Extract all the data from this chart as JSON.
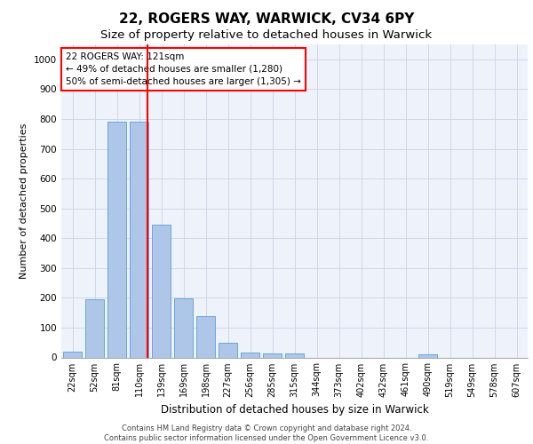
{
  "title1": "22, ROGERS WAY, WARWICK, CV34 6PY",
  "title2": "Size of property relative to detached houses in Warwick",
  "xlabel": "Distribution of detached houses by size in Warwick",
  "ylabel": "Number of detached properties",
  "bin_labels": [
    "22sqm",
    "52sqm",
    "81sqm",
    "110sqm",
    "139sqm",
    "169sqm",
    "198sqm",
    "227sqm",
    "256sqm",
    "285sqm",
    "315sqm",
    "344sqm",
    "373sqm",
    "402sqm",
    "432sqm",
    "461sqm",
    "490sqm",
    "519sqm",
    "549sqm",
    "578sqm",
    "607sqm"
  ],
  "bar_values": [
    20,
    196,
    790,
    790,
    445,
    197,
    140,
    50,
    15,
    12,
    12,
    0,
    0,
    0,
    0,
    0,
    10,
    0,
    0,
    0,
    0
  ],
  "bar_color": "#aec6e8",
  "bar_edge_color": "#5a9fd4",
  "annotation_text": "22 ROGERS WAY: 121sqm\n← 49% of detached houses are smaller (1,280)\n50% of semi-detached houses are larger (1,305) →",
  "annotation_fontsize": 7.5,
  "grid_color": "#d0d8e8",
  "background_color": "#eef2fa",
  "footer_text": "Contains HM Land Registry data © Crown copyright and database right 2024.\nContains public sector information licensed under the Open Government Licence v3.0.",
  "ylim": [
    0,
    1050
  ],
  "yticks": [
    0,
    100,
    200,
    300,
    400,
    500,
    600,
    700,
    800,
    900,
    1000
  ],
  "title1_fontsize": 11,
  "title2_fontsize": 9.5,
  "ylabel_fontsize": 8,
  "xlabel_fontsize": 8.5
}
